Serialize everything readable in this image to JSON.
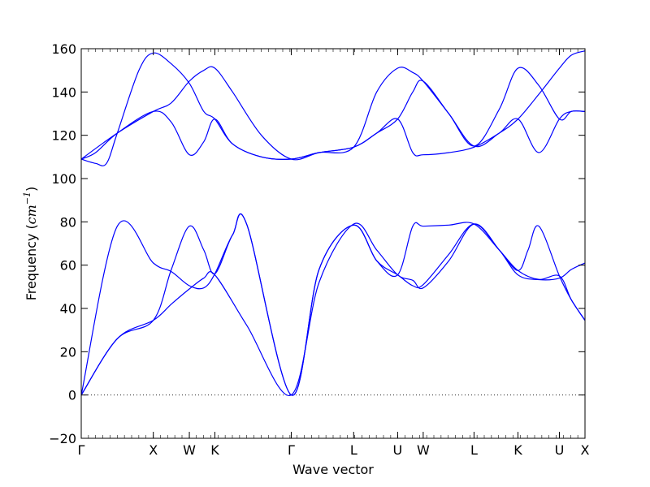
{
  "chart_data": {
    "type": "line",
    "title": "",
    "xlabel": "Wave vector",
    "ylabel_prefix": "Frequency (",
    "ylabel_unit": "cm",
    "ylabel_exp": "−1",
    "ylabel_suffix": ")",
    "ylim": [
      -20,
      160
    ],
    "yticks": [
      -20,
      0,
      20,
      40,
      60,
      80,
      100,
      120,
      140,
      160
    ],
    "ytick_labels": [
      "−20",
      "0",
      "20",
      "40",
      "60",
      "80",
      "100",
      "120",
      "140",
      "160"
    ],
    "xlim": [
      0,
      6.99
    ],
    "high_symmetry_points": [
      {
        "label": "Γ",
        "x": 0.0
      },
      {
        "label": "X",
        "x": 1.0
      },
      {
        "label": "W",
        "x": 1.5
      },
      {
        "label": "K",
        "x": 1.854
      },
      {
        "label": "Γ",
        "x": 2.914
      },
      {
        "label": "L",
        "x": 3.78
      },
      {
        "label": "U",
        "x": 4.39
      },
      {
        "label": "W",
        "x": 4.745
      },
      {
        "label": "L",
        "x": 5.45
      },
      {
        "label": "K",
        "x": 6.06
      },
      {
        "label": "U",
        "x": 6.635
      },
      {
        "label": "X",
        "x": 6.99
      }
    ],
    "zero_line": true,
    "line_color": "#0000ff",
    "series": [
      {
        "x": [
          0,
          0.5,
          1.0,
          1.25,
          1.5,
          1.7,
          1.854,
          2.3,
          2.914,
          3.3,
          3.78,
          4.1,
          4.39,
          4.6,
          4.745,
          5.1,
          5.45,
          5.8,
          6.06,
          6.35,
          6.635,
          6.8,
          6.99
        ],
        "y": [
          0,
          26,
          34.5,
          42,
          49,
          54,
          55.5,
          32,
          0,
          52,
          79,
          67,
          55.5,
          53,
          49.5,
          62,
          79,
          67,
          55.5,
          53.3,
          54,
          58,
          61
        ]
      },
      {
        "x": [
          0,
          0.5,
          1.0,
          1.25,
          1.5,
          1.7,
          1.854,
          2.1,
          2.3,
          2.914,
          3.3,
          3.78,
          4.1,
          4.39,
          4.6,
          4.745,
          5.1,
          5.45,
          5.8,
          6.06,
          6.35,
          6.635,
          6.8,
          6.99
        ],
        "y": [
          0,
          78,
          61,
          57,
          50.5,
          49.5,
          56,
          74,
          78.5,
          0,
          58,
          78.5,
          62,
          55.5,
          50.5,
          51,
          65,
          79,
          67,
          57.5,
          53.4,
          55,
          44,
          34.5
        ]
      },
      {
        "x": [
          0,
          0.5,
          1.0,
          1.25,
          1.5,
          1.7,
          1.854,
          2.1,
          2.3,
          2.914,
          3.3,
          3.78,
          4.1,
          4.39,
          4.6,
          4.745,
          5.1,
          5.45,
          5.8,
          6.06,
          6.2,
          6.35,
          6.635,
          6.8,
          6.99
        ],
        "y": [
          0,
          26,
          34.5,
          58,
          78,
          67,
          56,
          74,
          78.5,
          0,
          58,
          78.5,
          62,
          55.5,
          78,
          78,
          78.5,
          79,
          67,
          57.5,
          67,
          78,
          55,
          44,
          34.5
        ]
      },
      {
        "x": [
          0,
          0.2,
          0.5,
          1.0,
          1.25,
          1.5,
          1.7,
          1.854,
          2.1,
          2.5,
          2.914,
          3.3,
          3.78,
          4.1,
          4.39,
          4.6,
          4.745,
          5.1,
          5.45,
          5.8,
          6.06,
          6.35,
          6.635,
          6.8,
          6.99
        ],
        "y": [
          109,
          112,
          121,
          131,
          126,
          111,
          117,
          127.5,
          116,
          110,
          109,
          112,
          114.5,
          121,
          127.5,
          112,
          111,
          112,
          114.5,
          121,
          127.5,
          139,
          151,
          157,
          159
        ]
      },
      {
        "x": [
          0,
          0.2,
          0.35,
          0.5,
          0.8,
          1.0,
          1.25,
          1.5,
          1.7,
          1.854,
          2.1,
          2.5,
          2.914,
          3.3,
          3.78,
          4.1,
          4.39,
          4.6,
          4.745,
          5.1,
          5.45,
          5.8,
          6.06,
          6.35,
          6.635,
          6.8,
          6.99
        ],
        "y": [
          109,
          107,
          107,
          121,
          150,
          158,
          153,
          144,
          131,
          127.5,
          116,
          110,
          109,
          112,
          114.5,
          121,
          127.5,
          140,
          145,
          130,
          115,
          132,
          151,
          143,
          127.5,
          131,
          131
        ]
      },
      {
        "x": [
          0,
          0.5,
          1.0,
          1.25,
          1.5,
          1.7,
          1.854,
          2.1,
          2.5,
          2.914,
          3.3,
          3.78,
          4.1,
          4.39,
          4.6,
          4.745,
          5.1,
          5.45,
          5.8,
          6.06,
          6.35,
          6.635,
          6.8,
          6.99
        ],
        "y": [
          109,
          121,
          131,
          135,
          145,
          150,
          151,
          140,
          120,
          109,
          112,
          114.5,
          140,
          151,
          149,
          145,
          130,
          115,
          121,
          127.5,
          112,
          127.5,
          131,
          131
        ]
      }
    ]
  }
}
